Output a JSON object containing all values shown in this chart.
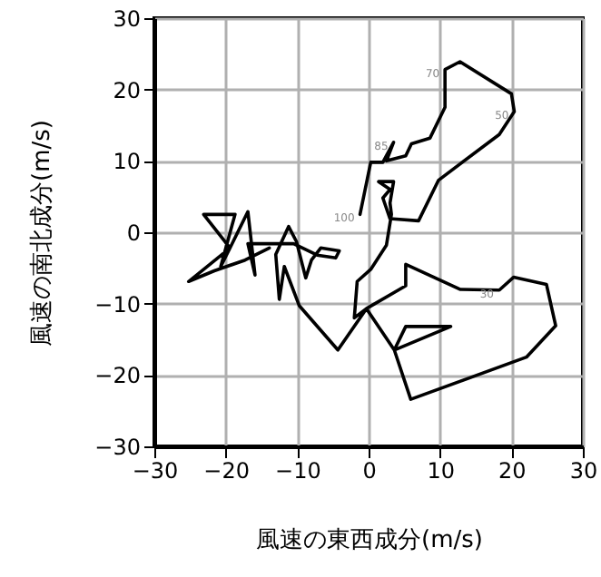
{
  "chart_data": {
    "type": "line",
    "xlabel": "風速の東西成分(m/s)",
    "ylabel": "風速の南北成分(m/s)",
    "x": [
      -1.2,
      0.3,
      2,
      3.5,
      2.5,
      5.2,
      6,
      8.6,
      10.7,
      10.7,
      12.8,
      20,
      20.4,
      18.3,
      9.8,
      7,
      3,
      2,
      3,
      1.4,
      3.5,
      3,
      3.2,
      2.5,
      0.3,
      -1.6,
      -2,
      -0.3,
      5.2,
      5.2,
      12.8,
      18.3,
      20.3,
      24.9,
      26.2,
      22.1,
      5.9,
      3.6,
      11.5,
      5.2,
      3.6,
      -0.3,
      -4.3,
      -9.7,
      -11.8,
      -12.5,
      -13,
      -11.2,
      -10.1,
      -8.8,
      -8,
      -6.7,
      -4.1,
      -4.6,
      -7.2,
      -10.5,
      -16.9,
      -15.9,
      -16.9,
      -19.4,
      -20.7,
      -18.7,
      -23.1,
      -19.4,
      -25.2,
      -21.6,
      -17.3,
      -13.9
    ],
    "values": [
      2.5,
      9.8,
      9.8,
      12.6,
      10,
      10.7,
      12.4,
      13.2,
      17.5,
      22.8,
      23.9,
      19.4,
      16.9,
      13.7,
      7.3,
      1.6,
      1.9,
      4.8,
      6,
      7.1,
      7.1,
      4.1,
      2.5,
      -1.8,
      -5.2,
      -6.9,
      -12,
      -10.7,
      -7.5,
      -4.5,
      -8,
      -8.1,
      -6.3,
      -7.3,
      -13.1,
      -17.5,
      -23.4,
      -16.5,
      -13.2,
      -13.2,
      -16.5,
      -10.7,
      -16.5,
      -10.3,
      -4.8,
      -9.4,
      -3.1,
      0.8,
      -1.3,
      -6.4,
      -3.9,
      -2.2,
      -2.6,
      -3.6,
      -3.2,
      -1.6,
      -1.6,
      -6,
      2.9,
      -2.2,
      -4.8,
      2.5,
      2.5,
      -2.2,
      -6.9,
      -5.4,
      -3.9,
      -2.2
    ],
    "color": "#000000",
    "xlim": [
      -30,
      30
    ],
    "xticks": [
      -30,
      -20,
      -10,
      0,
      10,
      20,
      30
    ],
    "ylim": [
      -30,
      30
    ],
    "yticks": [
      -30,
      -20,
      -10,
      0,
      10,
      20,
      30
    ],
    "grid": true,
    "annotations": [
      {
        "text": "100",
        "x": -1.2,
        "y": 2.5
      },
      {
        "text": "85",
        "x": 3.5,
        "y": 12.6
      },
      {
        "text": "70",
        "x": 10.7,
        "y": 22.8
      },
      {
        "text": "50",
        "x": 20.4,
        "y": 16.9
      },
      {
        "text": "30",
        "x": 18.3,
        "y": -8.1
      }
    ]
  }
}
